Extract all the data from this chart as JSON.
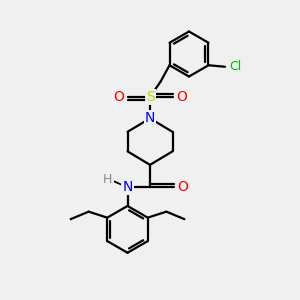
{
  "bg_color": "#f0f0f0",
  "atom_colors": {
    "C": "#000000",
    "N": "#0000ff",
    "O": "#ff0000",
    "S": "#cccc00",
    "Cl": "#00bb00",
    "H": "#888888"
  },
  "bond_color": "#000000",
  "bond_width": 1.6,
  "figsize": [
    3.0,
    3.0
  ],
  "dpi": 100
}
